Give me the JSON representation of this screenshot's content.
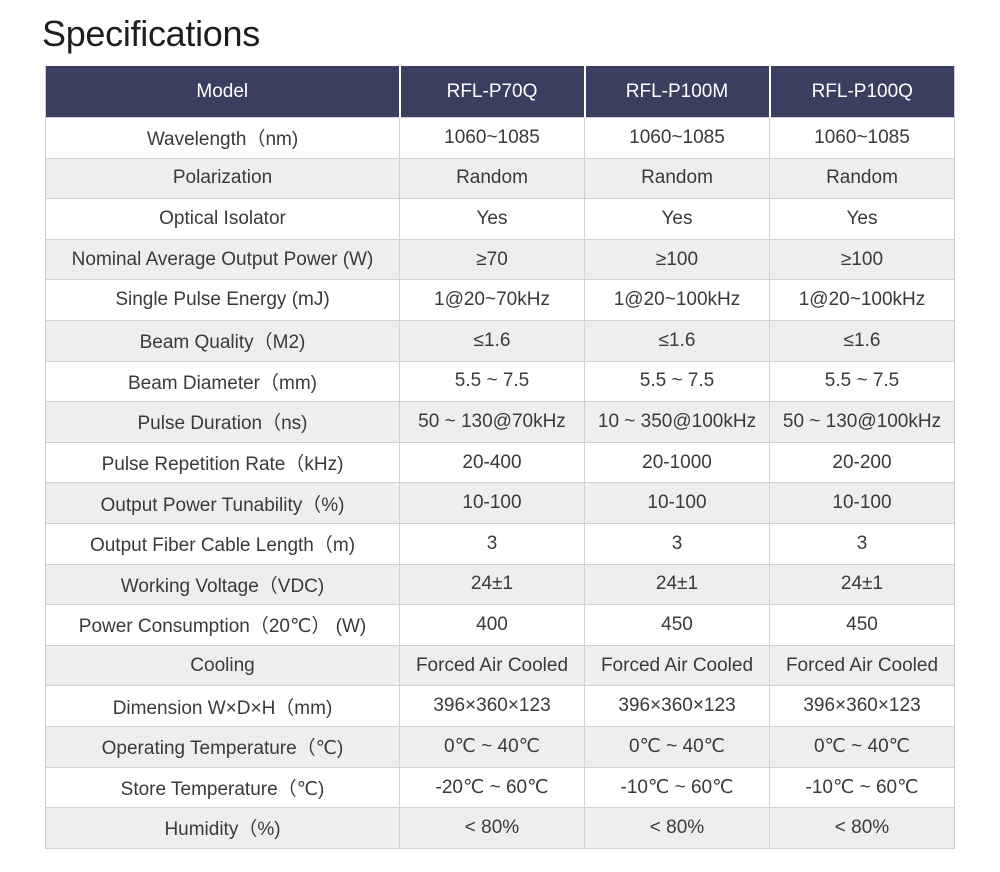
{
  "title": "Specifications",
  "table": {
    "headers": [
      "Model",
      "RFL-P70Q",
      "RFL-P100M",
      "RFL-P100Q"
    ],
    "rows": [
      [
        "Wavelength（nm)",
        "1060~1085",
        "1060~1085",
        "1060~1085"
      ],
      [
        "Polarization",
        "Random",
        "Random",
        "Random"
      ],
      [
        "Optical Isolator",
        "Yes",
        "Yes",
        "Yes"
      ],
      [
        "Nominal Average Output Power (W)",
        "≥70",
        "≥100",
        "≥100"
      ],
      [
        "Single Pulse Energy (mJ)",
        "1@20~70kHz",
        "1@20~100kHz",
        "1@20~100kHz"
      ],
      [
        "Beam Quality（M2)",
        "≤1.6",
        "≤1.6",
        "≤1.6"
      ],
      [
        "Beam Diameter（mm)",
        "5.5 ~ 7.5",
        "5.5 ~ 7.5",
        "5.5 ~ 7.5"
      ],
      [
        "Pulse Duration（ns)",
        "50 ~ 130@70kHz",
        "10 ~ 350@100kHz",
        "50 ~ 130@100kHz"
      ],
      [
        "Pulse Repetition Rate（kHz)",
        "20-400",
        "20-1000",
        "20-200"
      ],
      [
        "Output Power Tunability（%)",
        "10-100",
        "10-100",
        "10-100"
      ],
      [
        "Output Fiber Cable Length（m)",
        "3",
        "3",
        "3"
      ],
      [
        "Working Voltage（VDC)",
        "24±1",
        "24±1",
        "24±1"
      ],
      [
        "Power Consumption（20℃） (W)",
        "400",
        "450",
        "450"
      ],
      [
        "Cooling",
        "Forced Air Cooled",
        "Forced Air Cooled",
        "Forced Air Cooled"
      ],
      [
        "Dimension W×D×H（mm)",
        "396×360×123",
        "396×360×123",
        "396×360×123"
      ],
      [
        "Operating Temperature（℃)",
        "0℃ ~ 40℃",
        "0℃ ~ 40℃",
        "0℃ ~ 40℃"
      ],
      [
        "Store Temperature（℃)",
        "-20℃ ~ 60℃",
        "-10℃ ~ 60℃",
        "-10℃ ~ 60℃"
      ],
      [
        "Humidity（%)",
        "< 80%",
        "< 80%",
        "< 80%"
      ]
    ]
  },
  "colors": {
    "header_bg": "#3a3f5f",
    "header_text": "#ffffff",
    "row_alt_bg": "#eeeeee",
    "row_bg": "#ffffff",
    "border": "#d2d2d2"
  }
}
